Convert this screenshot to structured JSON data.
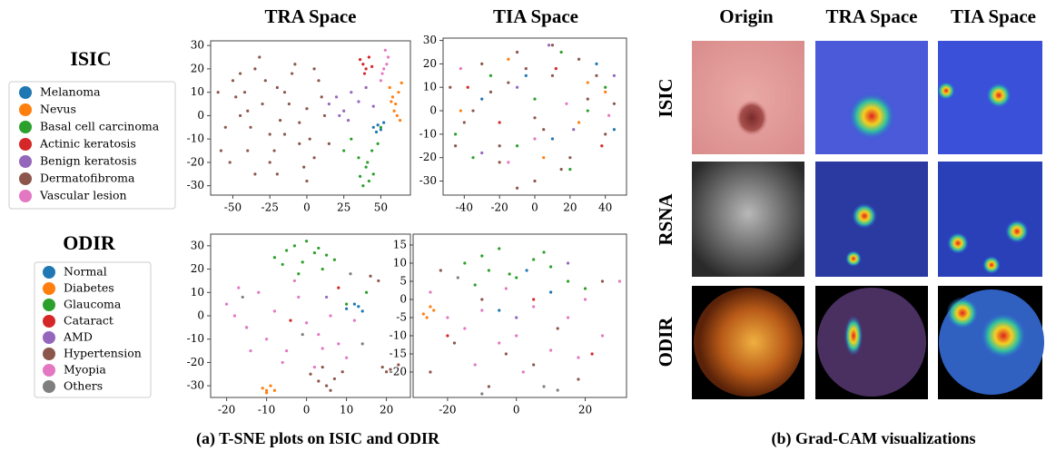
{
  "chart_data": [
    {
      "type": "scatter",
      "title": "TRA Space",
      "legend_title": "ISIC",
      "xlim": [
        -65,
        70
      ],
      "ylim": [
        -34,
        32
      ],
      "xticks": [
        -50,
        -25,
        0,
        25,
        50
      ],
      "yticks": [
        -30,
        -20,
        -10,
        0,
        10,
        20,
        30
      ],
      "series": [
        {
          "name": "Melanoma",
          "color": "#1f77b4",
          "x": [
            45,
            48,
            50,
            52,
            47
          ],
          "y": [
            -5,
            -4,
            -6,
            -3,
            -7
          ]
        },
        {
          "name": "Nevus",
          "color": "#ff7f0e",
          "x": [
            56,
            58,
            60,
            62,
            64,
            59,
            61,
            63,
            57
          ],
          "y": [
            12,
            8,
            5,
            10,
            14,
            2,
            0,
            -2,
            6
          ]
        },
        {
          "name": "Basal cell carcinoma",
          "color": "#2ca02c",
          "x": [
            38,
            42,
            45,
            40,
            35,
            44,
            48,
            30,
            36,
            41,
            50,
            25
          ],
          "y": [
            -30,
            -28,
            -25,
            -22,
            -18,
            -15,
            -12,
            -10,
            -26,
            -20,
            -5,
            -15
          ]
        },
        {
          "name": "Actinic keratosis",
          "color": "#d62728",
          "x": [
            36,
            38,
            40,
            42,
            39,
            44
          ],
          "y": [
            24,
            22,
            20,
            25,
            18,
            21
          ]
        },
        {
          "name": "Benign keratosis",
          "color": "#9467bd",
          "x": [
            15,
            20,
            25,
            30,
            35,
            40,
            45,
            22,
            28
          ],
          "y": [
            5,
            8,
            2,
            10,
            6,
            12,
            4,
            0,
            -2
          ]
        },
        {
          "name": "Dermatofibroma",
          "color": "#8c564b",
          "x": [
            -60,
            -55,
            -50,
            -45,
            -40,
            -35,
            -30,
            -25,
            -20,
            -15,
            -10,
            -5,
            0,
            5,
            10,
            -58,
            -48,
            -38,
            -28,
            -18,
            -8,
            2,
            12,
            -52,
            -42,
            -32,
            -22,
            -12,
            -2,
            8,
            -45,
            -35,
            -25,
            -15,
            -5,
            5,
            15,
            -40,
            -20,
            0
          ],
          "y": [
            10,
            -5,
            15,
            0,
            -15,
            20,
            5,
            -20,
            12,
            -8,
            18,
            -12,
            3,
            -18,
            8,
            -15,
            8,
            -5,
            15,
            -2,
            22,
            -10,
            0,
            -20,
            10,
            25,
            -15,
            5,
            -22,
            15,
            18,
            -25,
            -8,
            10,
            -3,
            20,
            -12,
            2,
            -25,
            -28
          ]
        },
        {
          "name": "Vascular lesion",
          "color": "#e377c2",
          "x": [
            50,
            52,
            53,
            55,
            51,
            54
          ],
          "y": [
            15,
            20,
            28,
            25,
            18,
            22
          ]
        }
      ]
    },
    {
      "type": "scatter",
      "title": "TIA Space",
      "xlim": [
        -52,
        52
      ],
      "ylim": [
        -36,
        31
      ],
      "xticks": [
        -40,
        -20,
        0,
        20,
        40
      ],
      "yticks": [
        -30,
        -20,
        -10,
        0,
        10,
        20,
        30
      ],
      "series": [
        {
          "name": "Melanoma",
          "color": "#1f77b4",
          "x": [
            -30,
            10,
            35,
            -5,
            45
          ],
          "y": [
            5,
            -12,
            20,
            15,
            -8
          ]
        },
        {
          "name": "Nevus",
          "color": "#ff7f0e",
          "x": [
            -42,
            30,
            40,
            5,
            -15,
            25
          ],
          "y": [
            0,
            12,
            8,
            -20,
            22,
            -5
          ]
        },
        {
          "name": "Basal cell carcinoma",
          "color": "#2ca02c",
          "x": [
            -45,
            -25,
            0,
            20,
            40,
            -10,
            15,
            -35,
            30
          ],
          "y": [
            -10,
            15,
            5,
            -25,
            10,
            -15,
            25,
            -20,
            0
          ]
        },
        {
          "name": "Actinic keratosis",
          "color": "#d62728",
          "x": [
            -20,
            12,
            38,
            -38
          ],
          "y": [
            -5,
            18,
            -15,
            10
          ]
        },
        {
          "name": "Benign keratosis",
          "color": "#9467bd",
          "x": [
            -10,
            22,
            45,
            -30,
            8
          ],
          "y": [
            10,
            -8,
            15,
            -18,
            28
          ]
        },
        {
          "name": "Dermatofibroma",
          "color": "#8c564b",
          "x": [
            -48,
            -40,
            -30,
            -20,
            -10,
            0,
            10,
            20,
            30,
            40,
            -35,
            -15,
            5,
            25,
            45,
            -45,
            -25,
            -5,
            15,
            35,
            -10,
            0,
            10,
            -20
          ],
          "y": [
            10,
            -5,
            20,
            -15,
            25,
            -30,
            15,
            -20,
            5,
            -10,
            0,
            12,
            -8,
            22,
            3,
            -15,
            8,
            18,
            -25,
            15,
            -33,
            -3,
            28,
            -22
          ]
        },
        {
          "name": "Vascular lesion",
          "color": "#e377c2",
          "x": [
            -15,
            18,
            42,
            -42,
            0
          ],
          "y": [
            -22,
            3,
            -2,
            18,
            -12
          ]
        }
      ]
    },
    {
      "type": "scatter",
      "legend_title": "ODIR",
      "xlim": [
        -24,
        26
      ],
      "ylim": [
        -35,
        35
      ],
      "xticks": [
        -20,
        -10,
        0,
        10,
        20
      ],
      "yticks": [
        -30,
        -20,
        -10,
        0,
        10,
        20,
        30
      ],
      "series": [
        {
          "name": "Normal",
          "color": "#1f77b4",
          "x": [
            10,
            12,
            14,
            13
          ],
          "y": [
            3,
            5,
            2,
            4
          ]
        },
        {
          "name": "Diabetes",
          "color": "#ff7f0e",
          "x": [
            -11,
            -10,
            -9,
            -10,
            -8
          ],
          "y": [
            -31,
            -33,
            -30,
            -32,
            -32
          ]
        },
        {
          "name": "Glaucoma",
          "color": "#2ca02c",
          "x": [
            -8,
            -5,
            -3,
            0,
            2,
            5,
            7,
            -6,
            -1,
            3,
            4,
            -2,
            10,
            15
          ],
          "y": [
            25,
            28,
            30,
            32,
            27,
            26,
            24,
            22,
            23,
            29,
            20,
            18,
            5,
            10
          ]
        },
        {
          "name": "Cataract",
          "color": "#d62728",
          "x": [
            -4,
            8
          ],
          "y": [
            -2,
            12
          ]
        },
        {
          "name": "AMD",
          "color": "#9467bd",
          "x": [
            5,
            -15
          ],
          "y": [
            8,
            -5
          ]
        },
        {
          "name": "Hypertension",
          "color": "#8c564b",
          "x": [
            1,
            3,
            5,
            7,
            9,
            4,
            6,
            19,
            21,
            23,
            20,
            18,
            16
          ],
          "y": [
            -25,
            -28,
            -30,
            -27,
            -24,
            -22,
            -32,
            -22,
            -23,
            -21,
            -24,
            15,
            17
          ]
        },
        {
          "name": "Myopia",
          "color": "#e377c2",
          "x": [
            -20,
            -18,
            -15,
            -12,
            -10,
            -8,
            -5,
            -2,
            0,
            3,
            6,
            8,
            10,
            12,
            -14,
            -6,
            2,
            -17,
            -3,
            4
          ],
          "y": [
            5,
            0,
            -5,
            10,
            -10,
            2,
            -15,
            8,
            -3,
            -8,
            0,
            -12,
            -18,
            -2,
            -15,
            -20,
            -22,
            12,
            15,
            -14
          ]
        },
        {
          "name": "Others",
          "color": "#7f7f7f",
          "x": [
            -16,
            -1,
            11,
            14
          ],
          "y": [
            8,
            -8,
            18,
            -12
          ]
        }
      ]
    },
    {
      "type": "scatter",
      "xlim": [
        -30,
        32
      ],
      "ylim": [
        -27,
        18
      ],
      "xticks": [
        -20,
        0,
        20
      ],
      "yticks": [
        -20,
        -15,
        -10,
        -5,
        0,
        5,
        10,
        15
      ],
      "series": [
        {
          "name": "Normal",
          "color": "#1f77b4",
          "x": [
            -5,
            3,
            10
          ],
          "y": [
            -3,
            8,
            2
          ]
        },
        {
          "name": "Diabetes",
          "color": "#ff7f0e",
          "x": [
            -27,
            -25,
            -26,
            -24
          ],
          "y": [
            -4,
            -2,
            -5,
            -3
          ]
        },
        {
          "name": "Glaucoma",
          "color": "#2ca02c",
          "x": [
            -15,
            -10,
            -8,
            -5,
            0,
            5,
            10,
            15,
            -12,
            -2,
            8,
            20
          ],
          "y": [
            10,
            12,
            8,
            14,
            6,
            11,
            9,
            5,
            4,
            7,
            13,
            3
          ]
        },
        {
          "name": "Cataract",
          "color": "#d62728",
          "x": [
            -20,
            5,
            22
          ],
          "y": [
            -10,
            0,
            -15
          ]
        },
        {
          "name": "AMD",
          "color": "#9467bd",
          "x": [
            0,
            15
          ],
          "y": [
            -5,
            10
          ]
        },
        {
          "name": "Hypertension",
          "color": "#8c564b",
          "x": [
            -25,
            -18,
            -10,
            -3,
            5,
            12,
            18,
            25,
            -22,
            -8
          ],
          "y": [
            -20,
            -12,
            0,
            -15,
            -18,
            -8,
            -22,
            5,
            8,
            -24
          ]
        },
        {
          "name": "Myopia",
          "color": "#e377c2",
          "x": [
            -25,
            -20,
            -15,
            -10,
            -5,
            0,
            5,
            10,
            15,
            20,
            25,
            30,
            -12,
            2,
            18,
            -3
          ],
          "y": [
            2,
            -5,
            -8,
            -3,
            -12,
            -10,
            -2,
            -14,
            -5,
            0,
            -10,
            5,
            -18,
            -20,
            -16,
            3
          ]
        },
        {
          "name": "Others",
          "color": "#7f7f7f",
          "x": [
            -10,
            8,
            12,
            -17
          ],
          "y": [
            -26,
            -24,
            -25,
            6
          ]
        }
      ]
    }
  ],
  "gradcam": {
    "columns": [
      "Origin",
      "TRA Space",
      "TIA Space"
    ],
    "rows": [
      "ISIC",
      "RSNA",
      "ODIR"
    ]
  },
  "captions": [
    "(a) T-SNE plots on ISIC and ODIR",
    "(b) Grad-CAM visualizations"
  ]
}
